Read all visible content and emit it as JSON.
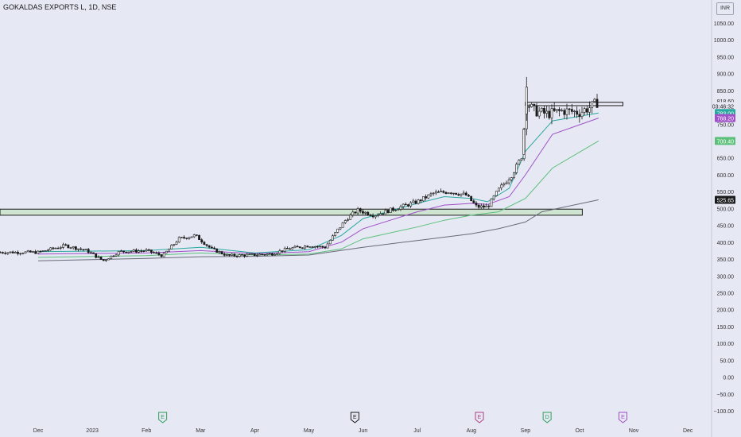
{
  "header": {
    "symbol_title": "GOKALDAS EXPORTS L, 1D, NSE",
    "currency": "INR"
  },
  "colors": {
    "background": "#e6e8f4",
    "candle_body": "#1a1a1a",
    "candle_wick": "#1a1a1a",
    "ema_20": "#2aa9a0",
    "ema_50": "#a050c8",
    "ema_100": "#5cc07a",
    "ema_200": "#6a6a7a",
    "zone_fill": "#cfe5d2",
    "zone_border": "#1a1a1a"
  },
  "chart_data": {
    "type": "candlestick",
    "ylim": [
      -100,
      1050
    ],
    "y_ticks": [
      "1050.00",
      "1000.00",
      "950.00",
      "900.00",
      "850.00",
      "800.00",
      "750.00",
      "700.00",
      "650.00",
      "600.00",
      "550.00",
      "500.00",
      "450.00",
      "400.00",
      "350.00",
      "300.00",
      "250.00",
      "200.00",
      "150.00",
      "100.00",
      "50.00",
      "0.00",
      "−50.00",
      "−100.00"
    ],
    "x_ticks": [
      "Dec",
      "2023",
      "Feb",
      "Mar",
      "Apr",
      "May",
      "Jun",
      "Jul",
      "Aug",
      "Sep",
      "Oct",
      "Nov",
      "Dec"
    ],
    "price_labels": [
      {
        "text": "818.60",
        "value": 818.6,
        "bg": "#e6e8f4",
        "fg": "#1a1a1a"
      },
      {
        "text": "03:46:32",
        "value": 804,
        "bg": "#e6e8f4",
        "fg": "#1a1a1a"
      },
      {
        "text": "783.00",
        "value": 783,
        "bg": "#2aa9a0",
        "fg": "#ffffff"
      },
      {
        "text": "768.20",
        "value": 768.2,
        "bg": "#a050c8",
        "fg": "#ffffff"
      },
      {
        "text": "700.40",
        "value": 700.4,
        "bg": "#5cc07a",
        "fg": "#ffffff"
      },
      {
        "text": "525.65",
        "value": 525.65,
        "bg": "#1a1a1a",
        "fg": "#ffffff"
      }
    ],
    "event_markers": [
      {
        "letter": "E",
        "month_index": 2.3,
        "color": "#2e9e5a"
      },
      {
        "letter": "E",
        "month_index": 5.85,
        "color": "#1a1a1a"
      },
      {
        "letter": "E",
        "month_index": 8.15,
        "color": "#b04080"
      },
      {
        "letter": "D",
        "month_index": 9.4,
        "color": "#2e9e5a"
      },
      {
        "letter": "E",
        "month_index": 10.8,
        "color": "#a050c8"
      }
    ],
    "zones": [
      {
        "name": "support-zone",
        "start_index": 0,
        "end_index": 10.05,
        "low": 480,
        "high": 498
      },
      {
        "name": "resistance-zone",
        "start_index": 9.0,
        "end_index": 10.8,
        "low": 805,
        "high": 815
      }
    ],
    "ohlc_monthly_anchor": [
      {
        "m": 0,
        "p": 370
      },
      {
        "m": 0.5,
        "p": 390
      },
      {
        "m": 0.9,
        "p": 375
      },
      {
        "m": 1.2,
        "p": 345
      },
      {
        "m": 1.5,
        "p": 372
      },
      {
        "m": 2.0,
        "p": 375
      },
      {
        "m": 2.3,
        "p": 360
      },
      {
        "m": 2.6,
        "p": 410
      },
      {
        "m": 2.9,
        "p": 420
      },
      {
        "m": 3.2,
        "p": 380
      },
      {
        "m": 3.5,
        "p": 360
      },
      {
        "m": 3.9,
        "p": 362
      },
      {
        "m": 4.3,
        "p": 365
      },
      {
        "m": 4.6,
        "p": 380
      },
      {
        "m": 5.0,
        "p": 390
      },
      {
        "m": 5.3,
        "p": 385
      },
      {
        "m": 5.5,
        "p": 430
      },
      {
        "m": 5.7,
        "p": 470
      },
      {
        "m": 5.9,
        "p": 495
      },
      {
        "m": 6.2,
        "p": 480
      },
      {
        "m": 6.6,
        "p": 500
      },
      {
        "m": 7.0,
        "p": 520
      },
      {
        "m": 7.3,
        "p": 545
      },
      {
        "m": 7.6,
        "p": 550
      },
      {
        "m": 7.9,
        "p": 540
      },
      {
        "m": 8.1,
        "p": 505
      },
      {
        "m": 8.3,
        "p": 505
      },
      {
        "m": 8.5,
        "p": 555
      },
      {
        "m": 8.75,
        "p": 600
      },
      {
        "m": 8.95,
        "p": 660
      },
      {
        "m": 9.0,
        "p": 820
      },
      {
        "m": 9.15,
        "p": 790
      },
      {
        "m": 9.4,
        "p": 780
      },
      {
        "m": 9.7,
        "p": 790
      },
      {
        "m": 10.0,
        "p": 785
      },
      {
        "m": 10.25,
        "p": 805
      },
      {
        "m": 10.35,
        "p": 818.6
      }
    ],
    "ema_series": [
      {
        "name": "ema_20",
        "points": [
          [
            0,
            372
          ],
          [
            2,
            375
          ],
          [
            3,
            385
          ],
          [
            4,
            368
          ],
          [
            5,
            378
          ],
          [
            5.6,
            420
          ],
          [
            6,
            470
          ],
          [
            7,
            515
          ],
          [
            7.5,
            535
          ],
          [
            8,
            530
          ],
          [
            8.3,
            520
          ],
          [
            8.7,
            560
          ],
          [
            9,
            670
          ],
          [
            9.5,
            760
          ],
          [
            10.35,
            783
          ]
        ]
      },
      {
        "name": "ema_50",
        "points": [
          [
            0,
            365
          ],
          [
            2,
            368
          ],
          [
            3,
            375
          ],
          [
            4,
            366
          ],
          [
            5,
            372
          ],
          [
            5.6,
            400
          ],
          [
            6,
            440
          ],
          [
            7,
            490
          ],
          [
            7.5,
            510
          ],
          [
            8,
            515
          ],
          [
            8.3,
            512
          ],
          [
            8.7,
            535
          ],
          [
            9,
            600
          ],
          [
            9.5,
            720
          ],
          [
            10.35,
            768.2
          ]
        ]
      },
      {
        "name": "ema_100",
        "points": [
          [
            0,
            355
          ],
          [
            2,
            360
          ],
          [
            3,
            368
          ],
          [
            4,
            362
          ],
          [
            5,
            365
          ],
          [
            5.6,
            380
          ],
          [
            6,
            410
          ],
          [
            7,
            445
          ],
          [
            7.5,
            465
          ],
          [
            8,
            480
          ],
          [
            8.5,
            490
          ],
          [
            9,
            530
          ],
          [
            9.5,
            620
          ],
          [
            10.35,
            700.4
          ]
        ]
      },
      {
        "name": "ema_200",
        "points": [
          [
            0,
            345
          ],
          [
            2,
            352
          ],
          [
            3,
            357
          ],
          [
            4,
            358
          ],
          [
            5,
            362
          ],
          [
            6,
            385
          ],
          [
            7,
            405
          ],
          [
            8,
            425
          ],
          [
            8.5,
            440
          ],
          [
            9,
            460
          ],
          [
            9.3,
            490
          ],
          [
            10.35,
            525.65
          ]
        ]
      }
    ]
  }
}
